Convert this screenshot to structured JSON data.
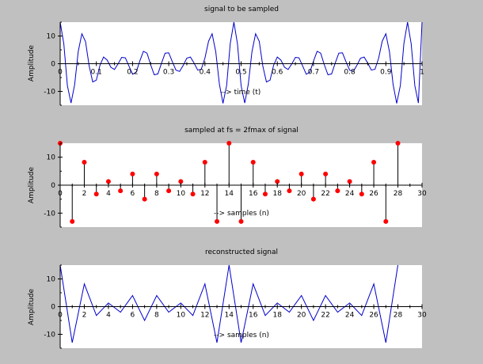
{
  "chart_data": [
    {
      "type": "line",
      "title": "signal to be sampled",
      "xlabel": "--> time (t)",
      "ylabel": "Amplitude",
      "xlim": [
        0,
        1
      ],
      "ylim": [
        -15,
        15
      ],
      "xticks": [
        0,
        0.1,
        0.2,
        0.3,
        0.4,
        0.5,
        0.6,
        0.7,
        0.8,
        0.9,
        1
      ],
      "xtick_labels": [
        "0",
        "0.1",
        "0.2",
        "0.3",
        "0.4",
        "0.5",
        "0.6",
        "0.7",
        "0.8",
        "0.9",
        "1"
      ],
      "yticks": [
        -10,
        0,
        10
      ],
      "grid": false,
      "series": [
        {
          "color": "#0000cc",
          "x": [
            0,
            0.01,
            0.02,
            0.03,
            0.04,
            0.05,
            0.06,
            0.07,
            0.08,
            0.09,
            0.1,
            0.11,
            0.12,
            0.13,
            0.14,
            0.15,
            0.16,
            0.17,
            0.18,
            0.19,
            0.2,
            0.21,
            0.22,
            0.23,
            0.24,
            0.25,
            0.26,
            0.27,
            0.28,
            0.29,
            0.3,
            0.31,
            0.32,
            0.33,
            0.34,
            0.35,
            0.36,
            0.37,
            0.38,
            0.39,
            0.4,
            0.41,
            0.42,
            0.43,
            0.44,
            0.45,
            0.46,
            0.47,
            0.48,
            0.49,
            0.5,
            0.51,
            0.52,
            0.53,
            0.54,
            0.55,
            0.56,
            0.57,
            0.58,
            0.59,
            0.6,
            0.61,
            0.62,
            0.63,
            0.64,
            0.65,
            0.66,
            0.67,
            0.68,
            0.69,
            0.7,
            0.71,
            0.72,
            0.73,
            0.74,
            0.75,
            0.76,
            0.77,
            0.78,
            0.79,
            0.8,
            0.81,
            0.82,
            0.83,
            0.84,
            0.85,
            0.86,
            0.87,
            0.88,
            0.89,
            0.9,
            0.91,
            0.92,
            0.93,
            0.94,
            0.95,
            0.96,
            0.97,
            0.98,
            0.99,
            1
          ],
          "y": [
            15,
            7.2,
            -7.9,
            -14.2,
            -7.5,
            4.4,
            10.8,
            8.0,
            -0.8,
            -6.6,
            -5.9,
            -0.5,
            2.4,
            1.3,
            -1.3,
            -2.1,
            -0.1,
            2.3,
            2.1,
            -0.8,
            -3.8,
            -3.1,
            0.9,
            4.5,
            3.8,
            -0.4,
            -4.0,
            -3.7,
            0.2,
            3.8,
            3.9,
            0.7,
            -2.3,
            -2.8,
            -0.6,
            2.0,
            2.4,
            0.2,
            -2.3,
            -2.0,
            2.0,
            8.1,
            10.8,
            4.3,
            -7.4,
            -14.3,
            -7.9,
            7.3,
            15.0,
            7.2,
            -7.9,
            -14.2,
            -7.4,
            4.3,
            10.8,
            8.1,
            -0.8,
            -6.6,
            -5.9,
            -0.5,
            2.4,
            1.3,
            -1.3,
            -2.1,
            -0.1,
            2.3,
            2.1,
            -0.8,
            -3.8,
            -3.1,
            0.9,
            4.5,
            3.8,
            -0.4,
            -4.0,
            -3.7,
            0.2,
            3.8,
            3.9,
            0.7,
            -2.3,
            -2.8,
            -0.6,
            2.0,
            2.4,
            0.2,
            -2.3,
            -2.0,
            2.0,
            8.1,
            10.8,
            4.3,
            -7.4,
            -14.3,
            -7.9,
            7.3,
            15.0,
            7.2,
            -7.9,
            -14.2,
            15
          ]
        }
      ]
    },
    {
      "type": "stem",
      "title": "sampled at fs = 2fmax  of signal",
      "xlabel": "--> samples (n)",
      "ylabel": "Amplitude",
      "xlim": [
        0,
        30
      ],
      "ylim": [
        -15,
        15
      ],
      "xticks": [
        0,
        2,
        4,
        6,
        8,
        10,
        12,
        14,
        16,
        18,
        20,
        22,
        24,
        26,
        28,
        30
      ],
      "xtick_labels": [
        "0",
        "2",
        "4",
        "6",
        "8",
        "10",
        "12",
        "14",
        "16",
        "18",
        "20",
        "22",
        "24",
        "26",
        "28",
        "30"
      ],
      "yticks": [
        -10,
        0,
        10
      ],
      "grid": false,
      "series": [
        {
          "color": "#ff0000",
          "x": [
            0,
            1,
            2,
            3,
            4,
            5,
            6,
            7,
            8,
            9,
            10,
            11,
            12,
            13,
            14,
            15,
            16,
            17,
            18,
            19,
            20,
            21,
            22,
            23,
            24,
            25,
            26,
            27,
            28
          ],
          "y": [
            15,
            -13,
            8.2,
            -3.2,
            1.3,
            -2.0,
            4.0,
            -5.0,
            4.0,
            -2.0,
            1.3,
            -3.2,
            8.2,
            -13,
            15,
            -13,
            8.2,
            -3.2,
            1.3,
            -2.0,
            4.0,
            -5.0,
            4.0,
            -2.0,
            1.3,
            -3.2,
            8.2,
            -13,
            15
          ]
        }
      ]
    },
    {
      "type": "line",
      "title": "reconstructed signal",
      "xlabel": "--> samples (n)",
      "ylabel": "Amplitude",
      "xlim": [
        0,
        30
      ],
      "ylim": [
        -15,
        15
      ],
      "xticks": [
        0,
        2,
        4,
        6,
        8,
        10,
        12,
        14,
        16,
        18,
        20,
        22,
        24,
        26,
        28,
        30
      ],
      "xtick_labels": [
        "0",
        "2",
        "4",
        "6",
        "8",
        "10",
        "12",
        "14",
        "16",
        "18",
        "20",
        "22",
        "24",
        "26",
        "28",
        "30"
      ],
      "yticks": [
        -10,
        0,
        10
      ],
      "grid": false,
      "series": [
        {
          "color": "#0000cc",
          "x": [
            0,
            1,
            2,
            3,
            4,
            5,
            6,
            7,
            8,
            9,
            10,
            11,
            12,
            13,
            14,
            15,
            16,
            17,
            18,
            19,
            20,
            21,
            22,
            23,
            24,
            25,
            26,
            27,
            28
          ],
          "y": [
            15,
            -13,
            8.2,
            -3.2,
            1.3,
            -2.0,
            4.0,
            -5.0,
            4.0,
            -2.0,
            1.3,
            -3.2,
            8.2,
            -13,
            15,
            -13,
            8.2,
            -3.2,
            1.3,
            -2.0,
            4.0,
            -5.0,
            4.0,
            -2.0,
            1.3,
            -3.2,
            8.2,
            -13,
            15
          ]
        }
      ]
    }
  ]
}
